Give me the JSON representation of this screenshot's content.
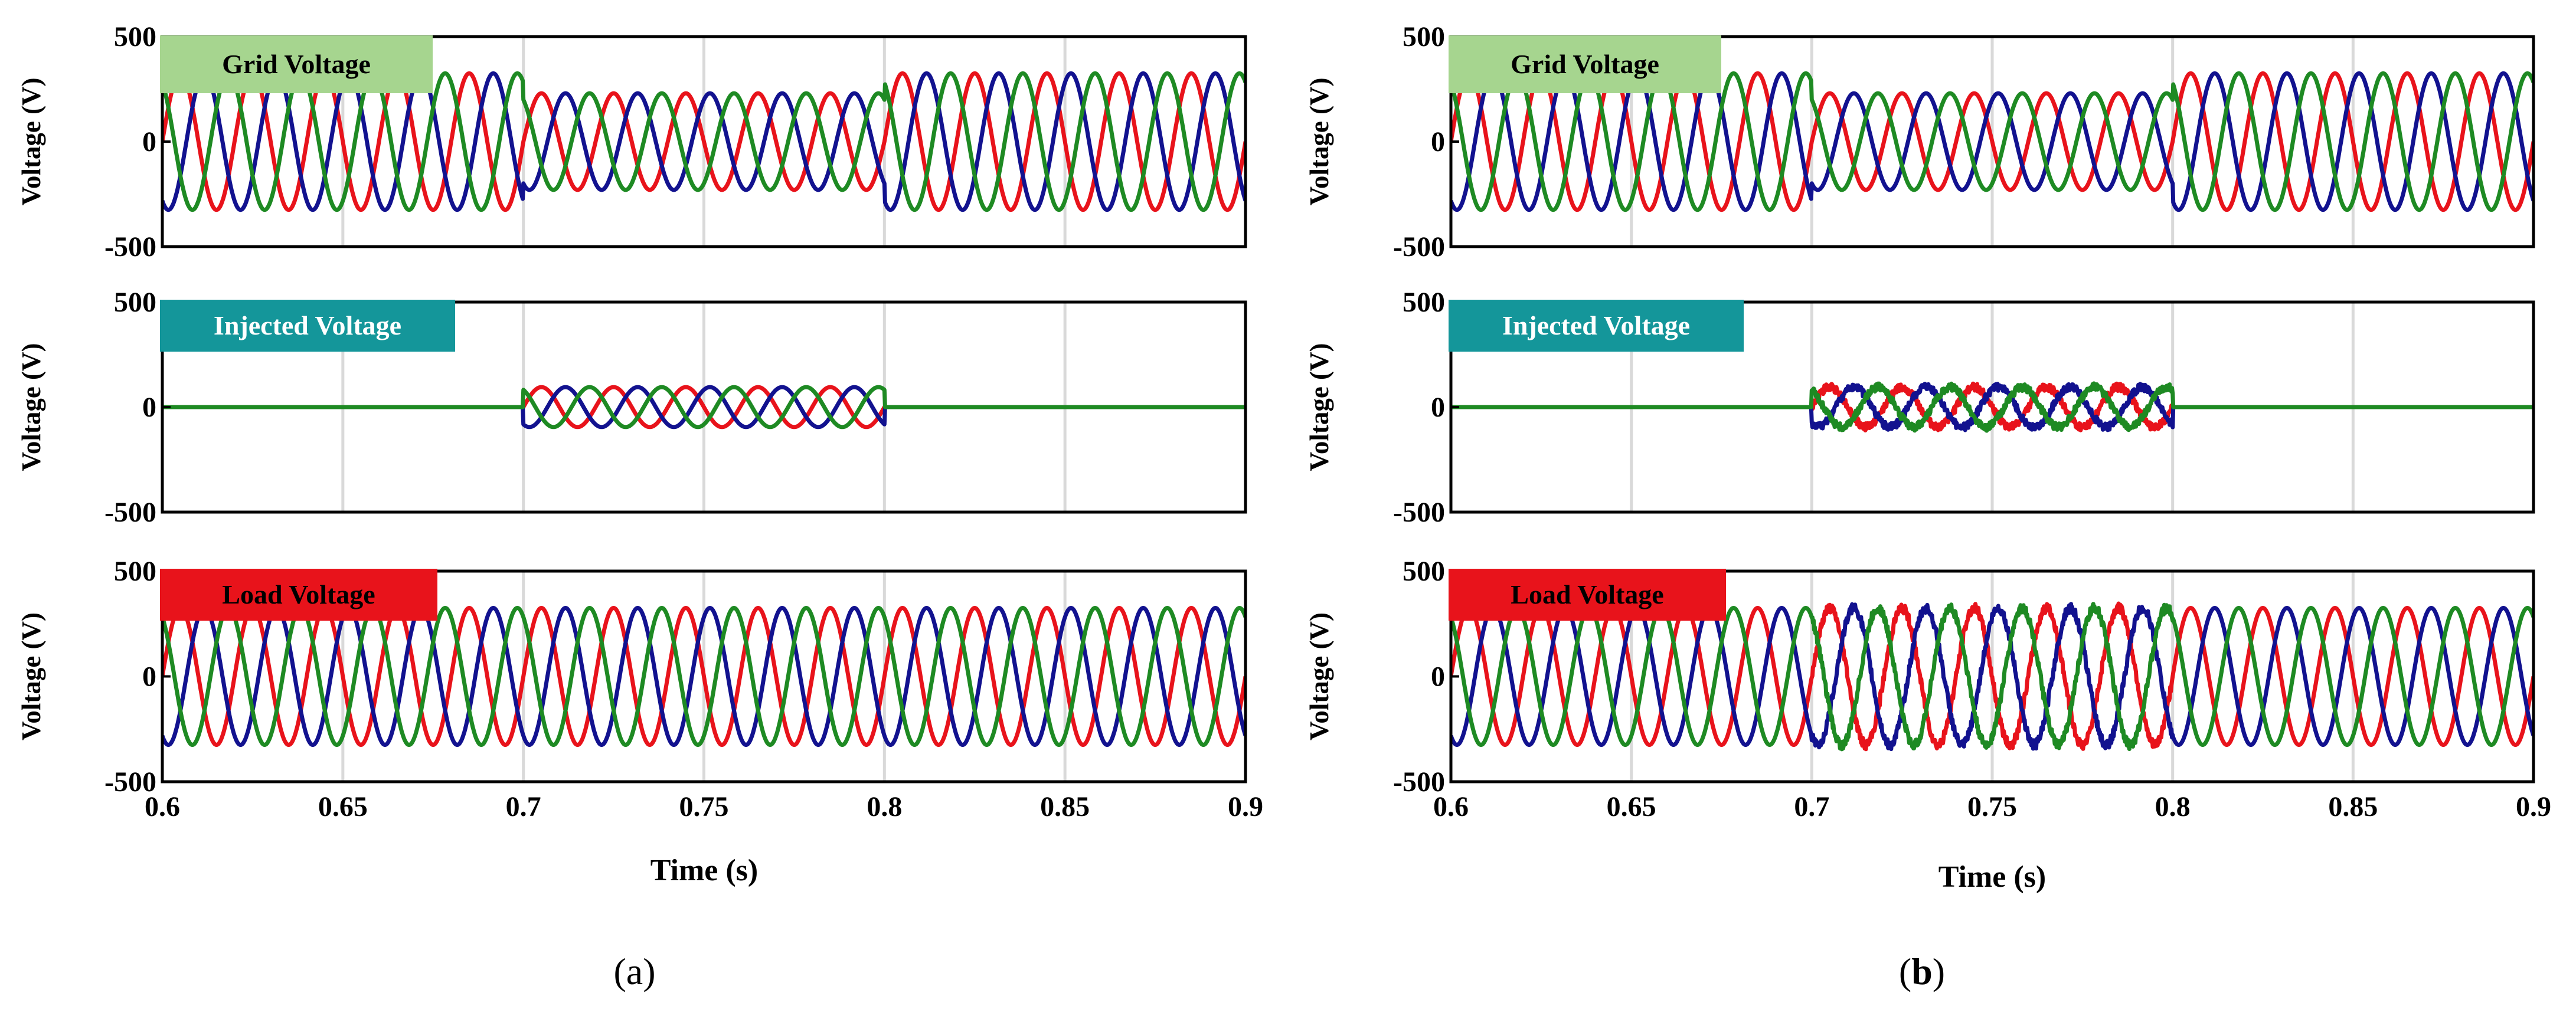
{
  "figure": {
    "label_a_open": "(",
    "label_a_letter": "a",
    "label_a_close": ")",
    "label_b_open": "(",
    "label_b_letter": "b",
    "label_b_close": ")"
  },
  "chart_data": [
    {
      "id": "a",
      "type": "line",
      "x_label": "Time (s)",
      "x_ticks": [
        "0.6",
        "0.65",
        "0.7",
        "0.75",
        "0.8",
        "0.85",
        "0.9"
      ],
      "xlim": [
        0.6,
        0.9
      ],
      "sag_start": 0.7,
      "sag_end": 0.8,
      "frequency_hz": 50,
      "series_colors": {
        "phase_a": "#e8131b",
        "phase_b": "#12128f",
        "phase_c": "#1e8a23"
      },
      "panels": [
        {
          "title": "Grid Voltage",
          "title_bg": "#a6d58f",
          "title_fg": "#000000",
          "y_label": "Voltage (V)",
          "y_ticks": [
            "500",
            "0",
            "-500"
          ],
          "ylim": [
            -500,
            500
          ],
          "amplitude_normal": 325,
          "amplitude_sag": 230,
          "noise": 0
        },
        {
          "title": "Injected Voltage",
          "title_bg": "#14969a",
          "title_fg": "#ffffff",
          "y_label": "Voltage (V)",
          "y_ticks": [
            "500",
            "0",
            "-500"
          ],
          "ylim": [
            -500,
            500
          ],
          "amplitude_normal": 0,
          "amplitude_sag": 95,
          "noise": 0
        },
        {
          "title": "Load Voltage",
          "title_bg": "#e8131b",
          "title_fg": "#000000",
          "y_label": "Voltage (V)",
          "y_ticks": [
            "500",
            "0",
            "-500"
          ],
          "ylim": [
            -500,
            500
          ],
          "amplitude_normal": 325,
          "amplitude_sag": 325,
          "noise": 0
        }
      ]
    },
    {
      "id": "b",
      "type": "line",
      "x_label": "Time (s)",
      "x_ticks": [
        "0.6",
        "0.65",
        "0.7",
        "0.75",
        "0.8",
        "0.85",
        "0.9"
      ],
      "xlim": [
        0.6,
        0.9
      ],
      "sag_start": 0.7,
      "sag_end": 0.8,
      "frequency_hz": 50,
      "series_colors": {
        "phase_a": "#e8131b",
        "phase_b": "#12128f",
        "phase_c": "#1e8a23"
      },
      "panels": [
        {
          "title": "Grid Voltage",
          "title_bg": "#a6d58f",
          "title_fg": "#000000",
          "y_label": "Voltage (V)",
          "y_ticks": [
            "500",
            "0",
            "-500"
          ],
          "ylim": [
            -500,
            500
          ],
          "amplitude_normal": 325,
          "amplitude_sag": 230,
          "noise": 0
        },
        {
          "title": "Injected Voltage",
          "title_bg": "#14969a",
          "title_fg": "#ffffff",
          "y_label": "Voltage (V)",
          "y_ticks": [
            "500",
            "0",
            "-500"
          ],
          "ylim": [
            -500,
            500
          ],
          "amplitude_normal": 0,
          "amplitude_sag": 95,
          "noise": 18
        },
        {
          "title": "Load Voltage",
          "title_bg": "#e8131b",
          "title_fg": "#000000",
          "y_label": "Voltage (V)",
          "y_ticks": [
            "500",
            "0",
            "-500"
          ],
          "ylim": [
            -500,
            500
          ],
          "amplitude_normal": 325,
          "amplitude_sag": 325,
          "noise": 22
        }
      ]
    }
  ]
}
